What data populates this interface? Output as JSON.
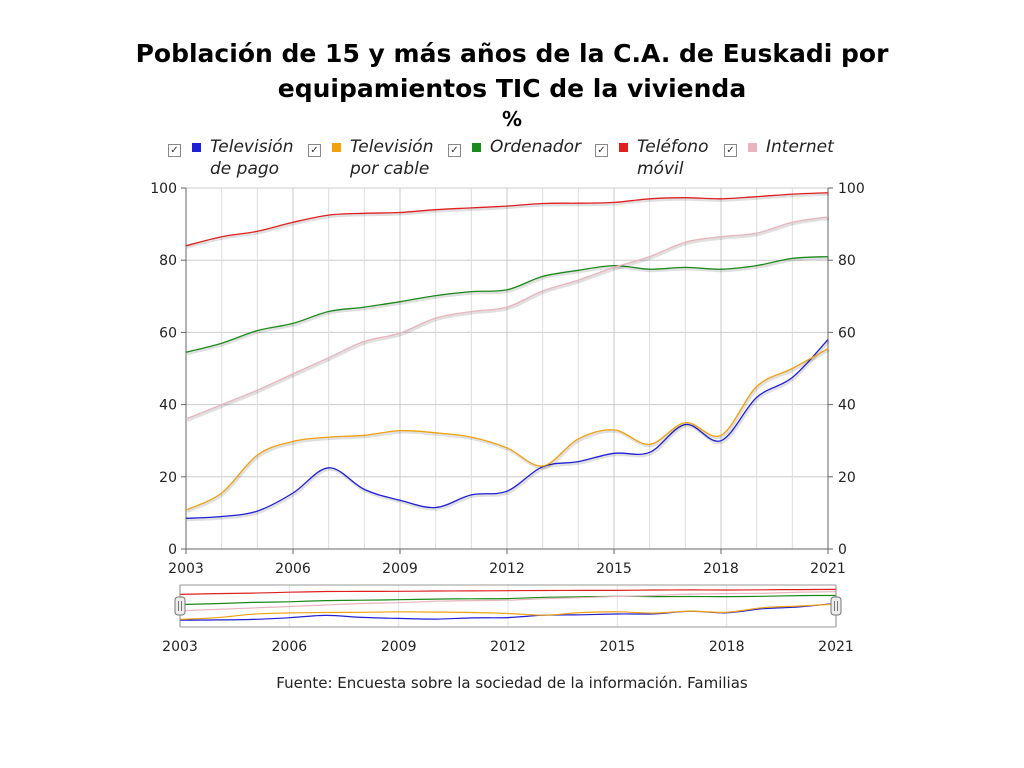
{
  "title_line1": "Población de 15 y más años de la C.A. de Euskadi por",
  "title_line2": "equipamientos TIC de la vivienda",
  "unit": "%",
  "source": "Fuente: Encuesta sobre la sociedad de la información. Familias",
  "legend_check_icon": "checkbox-checked-icon",
  "chart_data": {
    "type": "line",
    "x": [
      2003,
      2004,
      2005,
      2006,
      2007,
      2008,
      2009,
      2010,
      2011,
      2012,
      2013,
      2014,
      2015,
      2016,
      2017,
      2018,
      2019,
      2020,
      2021
    ],
    "x_ticks": [
      "2003",
      "2006",
      "2009",
      "2012",
      "2015",
      "2018",
      "2021"
    ],
    "y_ticks": [
      "0",
      "20",
      "40",
      "60",
      "80",
      "100"
    ],
    "ylim": [
      0,
      100
    ],
    "xlim": [
      2003,
      2021
    ],
    "grid": true,
    "legend_position": "top",
    "series": [
      {
        "name": "Televisión\nde pago",
        "color": "#1f1fd6",
        "values": [
          8.5,
          9.0,
          10.5,
          15.5,
          22.5,
          16.5,
          13.5,
          11.5,
          15.0,
          16.0,
          22.8,
          24.2,
          26.5,
          26.8,
          34.5,
          30.0,
          42.0,
          47.5,
          58.0
        ]
      },
      {
        "name": "Televisión\npor cable",
        "color": "#f0a010",
        "values": [
          10.8,
          15.5,
          26.0,
          29.8,
          31.0,
          31.5,
          32.8,
          32.2,
          31.0,
          28.0,
          23.0,
          30.5,
          33.0,
          29.0,
          35.0,
          31.5,
          45.0,
          50.0,
          55.5
        ]
      },
      {
        "name": "Ordenador",
        "color": "#1a8a1a",
        "values": [
          54.5,
          57.0,
          60.5,
          62.5,
          65.8,
          67.0,
          68.5,
          70.2,
          71.3,
          71.8,
          75.5,
          77.2,
          78.5,
          77.5,
          78.0,
          77.5,
          78.5,
          80.5,
          81.0
        ]
      },
      {
        "name": "Teléfono\nmóvil",
        "color": "#e02020",
        "values": [
          84.0,
          86.5,
          88.0,
          90.5,
          92.5,
          93.0,
          93.2,
          94.0,
          94.5,
          95.0,
          95.7,
          95.8,
          96.0,
          97.0,
          97.3,
          97.0,
          97.6,
          98.3,
          98.7
        ]
      },
      {
        "name": "Internet",
        "color": "#e8b4be",
        "values": [
          36.0,
          40.0,
          44.0,
          48.5,
          53.0,
          57.5,
          59.8,
          64.0,
          65.8,
          67.0,
          71.5,
          74.5,
          78.0,
          81.0,
          85.0,
          86.5,
          87.5,
          90.5,
          92.0
        ]
      }
    ]
  }
}
